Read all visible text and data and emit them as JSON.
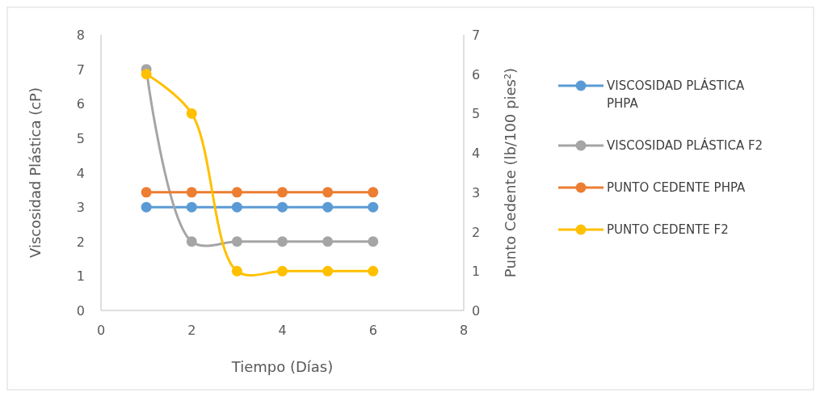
{
  "chart_data": {
    "type": "line",
    "xlabel": "Tiempo (Días)",
    "ylabel": "Viscosidad Plástica (cP)",
    "y2label": "Punto Cedente (lb/100 pies²)",
    "xlim": [
      0,
      8
    ],
    "xticks": [
      0,
      2,
      4,
      6,
      8
    ],
    "ylim": [
      0,
      8
    ],
    "yticks": [
      0,
      1,
      2,
      3,
      4,
      5,
      6,
      7,
      8
    ],
    "y2lim": [
      0,
      7
    ],
    "y2ticks": [
      0,
      1,
      2,
      3,
      4,
      5,
      6,
      7
    ],
    "marker": "circle",
    "line_style": "solid",
    "legend": "right",
    "series": [
      {
        "name": "VISCOSIDAD PLÁSTICA PHPA",
        "color": "#5b9bd5",
        "x": [
          1,
          2,
          3,
          4,
          5,
          6
        ],
        "values": [
          3,
          3,
          3,
          3,
          3,
          3
        ]
      },
      {
        "name": "VISCOSIDAD PLÁSTICA F2",
        "color": "#a5a5a5",
        "x": [
          1,
          2,
          3,
          4,
          5,
          6
        ],
        "values": [
          7,
          2,
          2,
          2,
          2,
          2
        ]
      },
      {
        "name": "PUNTO CEDENTE PHPA",
        "color": "#ed7d31",
        "x": [
          1,
          2,
          3,
          4,
          5,
          6
        ],
        "values": [
          3,
          3,
          3,
          3,
          3,
          3
        ],
        "axis": "y2"
      },
      {
        "name": "PUNTO CEDENTE F2",
        "color": "#ffc000",
        "x": [
          1,
          2,
          3,
          4,
          5,
          6
        ],
        "values": [
          6,
          5,
          1,
          1,
          1,
          1
        ],
        "axis": "y2"
      }
    ]
  }
}
